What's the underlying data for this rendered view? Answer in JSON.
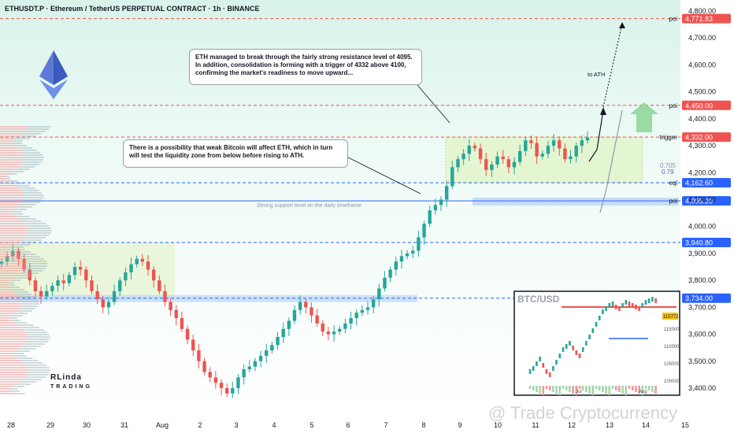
{
  "header": {
    "title": "ETHUSDT.P · Ethereum / TetherUS PERPETUAL CONTRACT · 1h · BINANCE"
  },
  "notes": {
    "note1": "ETH managed to break through the fairly strong resistance level of 4095. In addition, consolidation is forming with a trigger of 4332 above 4100, confirming the market's readiness to move upward...",
    "note2": "There is a possibility that weak Bitcoin will affect ETH, which in turn will test the liquidity zone from below before rising to ATH."
  },
  "annotations": {
    "to_ath": "to ATH",
    "support_text": "Strong support level on the daily timeframe",
    "fib_1": "0.705",
    "fib_2": "0.79"
  },
  "watermark": "@ Trade Cryptocurrency",
  "logo": {
    "text": "RLinda",
    "sub": "TRADING"
  },
  "colors": {
    "up": "#26a69a",
    "down": "#ef5350",
    "level_red": "#ef5350",
    "level_blue": "#2962ff",
    "zone_green": "#e8f5d7",
    "zone_blue": "#bbd6f7"
  },
  "chart_data": {
    "type": "candlestick",
    "symbol": "ETHUSDT.P",
    "timeframe": "1h",
    "y_axis": {
      "ticks": [
        3400,
        3500,
        3600,
        3700,
        3800,
        3900,
        4000,
        4100,
        4200,
        4300,
        4400,
        4500,
        4600,
        4700,
        4800
      ],
      "tick_labels": [
        "3,400.00",
        "3,500.00",
        "3,600.00",
        "3,700.00",
        "3,800.00",
        "3,900.00",
        "4,000.00",
        "4,100.00",
        "4,200.00",
        "4,300.00",
        "4,400.00",
        "4,500.00",
        "4,600.00",
        "4,700.00",
        "4,800.00"
      ]
    },
    "x_axis": {
      "labels": [
        "28",
        "29",
        "30",
        "31",
        "Aug",
        "2",
        "3",
        "4",
        "5",
        "6",
        "7",
        "8",
        "9",
        "10",
        "11",
        "12",
        "13",
        "14",
        "15"
      ]
    },
    "levels": [
      {
        "name": "poi",
        "price": 4771.83,
        "label": "4,771.83",
        "color": "#ef5350",
        "style": "dashed"
      },
      {
        "name": "poi",
        "price": 4450.0,
        "label": "4,450.00",
        "color": "#ef5350",
        "style": "dashed"
      },
      {
        "name": "trigger",
        "price": 4332.0,
        "label": "4,332.00",
        "color": "#ef5350",
        "style": "dashed"
      },
      {
        "name": "eql",
        "price": 4162.6,
        "label": "4,162.60",
        "color": "#2962ff",
        "style": "dashed"
      },
      {
        "name": "poi",
        "price": 4095.2,
        "label": "4,095.20",
        "color": "#2962ff",
        "style": "solid"
      },
      {
        "name": "",
        "price": 3940.8,
        "label": "3,940.80",
        "color": "#2962ff",
        "style": "dashed"
      },
      {
        "name": "",
        "price": 3734.0,
        "label": "3,734.00",
        "color": "#2962ff",
        "style": "dashed"
      }
    ],
    "path_close": [
      3870,
      3890,
      3910,
      3880,
      3840,
      3800,
      3760,
      3740,
      3760,
      3780,
      3800,
      3790,
      3820,
      3850,
      3840,
      3800,
      3760,
      3730,
      3700,
      3720,
      3760,
      3800,
      3830,
      3860,
      3880,
      3870,
      3840,
      3800,
      3760,
      3720,
      3690,
      3660,
      3620,
      3580,
      3540,
      3500,
      3460,
      3440,
      3420,
      3400,
      3380,
      3400,
      3440,
      3470,
      3480,
      3500,
      3520,
      3540,
      3560,
      3590,
      3620,
      3650,
      3690,
      3720,
      3700,
      3670,
      3640,
      3610,
      3600,
      3610,
      3620,
      3640,
      3660,
      3680,
      3690,
      3700,
      3730,
      3770,
      3810,
      3840,
      3870,
      3890,
      3900,
      3910,
      3960,
      4010,
      4060,
      4080,
      4100,
      4150,
      4220,
      4250,
      4270,
      4300,
      4290,
      4250,
      4210,
      4230,
      4260,
      4250,
      4220,
      4240,
      4280,
      4320,
      4310,
      4260,
      4270,
      4300,
      4320,
      4290,
      4250,
      4260,
      4300,
      4320,
      4330
    ],
    "inset": {
      "title": "BTC/USD",
      "ticks": [
        "115000",
        "110000",
        "105000",
        "100000"
      ],
      "last_label": "115772",
      "x_labels": [
        "Jul",
        "Aug"
      ]
    }
  }
}
